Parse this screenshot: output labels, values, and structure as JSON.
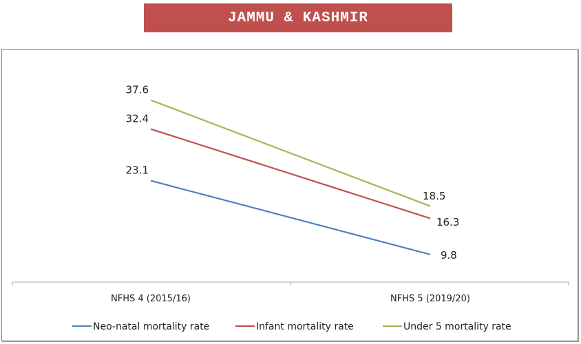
{
  "chart_data": {
    "type": "line",
    "title": "JAMMU & KASHMIR",
    "categories": [
      "NFHS 4 (2015/16)",
      "NFHS 5 (2019/20)"
    ],
    "series": [
      {
        "name": "Neo-natal mortality rate",
        "values": [
          23.1,
          9.8
        ],
        "labels": [
          "23.1",
          "9.8"
        ],
        "color": "#4f81bd"
      },
      {
        "name": "Infant mortality rate",
        "values": [
          32.4,
          16.3
        ],
        "labels": [
          "32.4",
          "16.3"
        ],
        "color": "#c0504d"
      },
      {
        "name": "Under 5 mortality rate",
        "values": [
          37.6,
          18.5
        ],
        "labels": [
          "37.6",
          "18.5"
        ],
        "color": "#9bbb59"
      }
    ],
    "xlabel": "",
    "ylabel": "",
    "ylim": [
      5,
      45
    ],
    "grid": false,
    "legend": "bottom"
  }
}
